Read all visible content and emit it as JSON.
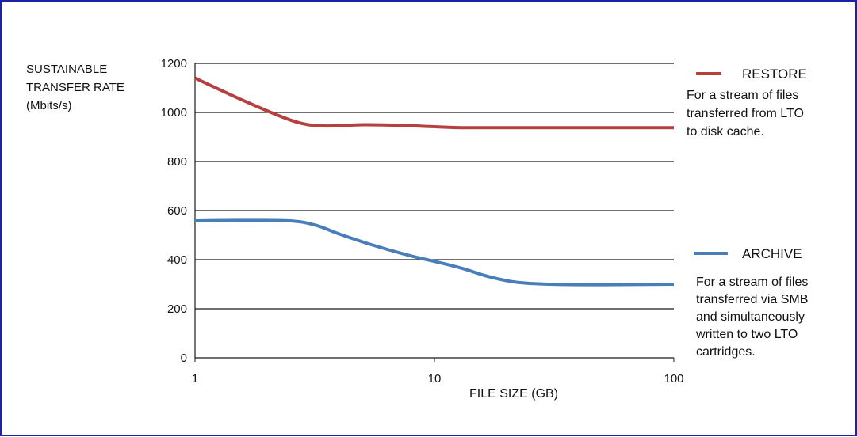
{
  "chart_data": {
    "type": "line",
    "xscale": "log",
    "xlim": [
      1,
      100
    ],
    "ylim": [
      0,
      1200
    ],
    "yticks": [
      0,
      200,
      400,
      600,
      800,
      1000,
      1200
    ],
    "xticks": [
      1,
      10,
      100
    ],
    "ylabel_lines": [
      "SUSTAINABLE",
      "TRANSFER RATE",
      "(Mbits/s)"
    ],
    "xlabel": "FILE SIZE (GB)",
    "grid": "horizontal",
    "series": [
      {
        "name": "RESTORE",
        "description_lines": [
          "For a stream of files",
          "transferred from LTO",
          "to disk cache."
        ],
        "color": "#b5403f",
        "points": [
          [
            1,
            1140
          ],
          [
            1.5,
            1060
          ],
          [
            2.2,
            990
          ],
          [
            2.8,
            955
          ],
          [
            3.5,
            945
          ],
          [
            5,
            950
          ],
          [
            7,
            948
          ],
          [
            10,
            942
          ],
          [
            13,
            938
          ],
          [
            20,
            938
          ],
          [
            40,
            938
          ],
          [
            100,
            938
          ]
        ]
      },
      {
        "name": "ARCHIVE",
        "description_lines": [
          "For a stream of files",
          "transferred via SMB",
          "and simultaneously",
          "written to two LTO",
          "cartridges."
        ],
        "color": "#4a7ebb",
        "points": [
          [
            1,
            558
          ],
          [
            1.5,
            560
          ],
          [
            2.5,
            558
          ],
          [
            3.2,
            540
          ],
          [
            4,
            505
          ],
          [
            5.5,
            460
          ],
          [
            8,
            415
          ],
          [
            10,
            393
          ],
          [
            13,
            365
          ],
          [
            17,
            330
          ],
          [
            22,
            308
          ],
          [
            30,
            300
          ],
          [
            50,
            298
          ],
          [
            100,
            300
          ]
        ]
      }
    ]
  }
}
